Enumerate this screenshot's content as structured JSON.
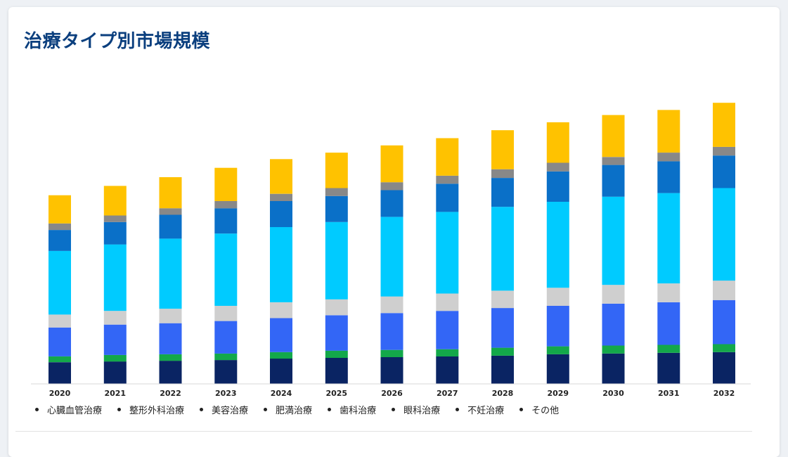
{
  "chart_data": {
    "type": "bar",
    "stacked": true,
    "title": "治療タイプ別市場規模",
    "categories": [
      "2020",
      "2021",
      "2022",
      "2023",
      "2024",
      "2025",
      "2026",
      "2027",
      "2028",
      "2029",
      "2030",
      "2031",
      "2032"
    ],
    "legend_position": "bottom",
    "grid": false,
    "ylim": [
      0,
      395
    ],
    "series": [
      {
        "name": "心臓血管治療",
        "color": "#0a2463",
        "values": [
          30,
          31,
          32,
          33,
          35,
          36,
          37,
          38,
          39,
          41,
          42,
          43,
          44
        ]
      },
      {
        "name": "整形外科治療",
        "color": "#13a84a",
        "values": [
          8,
          9,
          9,
          9,
          9,
          10,
          10,
          10,
          11,
          11,
          11,
          11,
          11
        ]
      },
      {
        "name": "美容治療",
        "color": "#3366f6",
        "values": [
          40,
          42,
          43,
          45,
          47,
          49,
          51,
          53,
          55,
          56,
          58,
          59,
          61
        ]
      },
      {
        "name": "肥満治療",
        "color": "#cfcfcf",
        "values": [
          18,
          19,
          20,
          21,
          22,
          22,
          23,
          24,
          24,
          25,
          26,
          26,
          27
        ]
      },
      {
        "name": "歯科治療",
        "color": "#00cbff",
        "values": [
          88,
          92,
          97,
          100,
          104,
          107,
          110,
          113,
          116,
          119,
          122,
          125,
          128
        ]
      },
      {
        "name": "眼科治療",
        "color": "#0a70c8",
        "values": [
          29,
          31,
          33,
          35,
          36,
          36,
          37,
          39,
          40,
          42,
          44,
          44,
          45
        ]
      },
      {
        "name": "不妊治療",
        "color": "#888888",
        "values": [
          9,
          9,
          9,
          10,
          10,
          11,
          11,
          11,
          12,
          12,
          11,
          12,
          12
        ]
      },
      {
        "name": "その他",
        "color": "#ffc200",
        "values": [
          39,
          41,
          43,
          46,
          48,
          49,
          51,
          52,
          54,
          56,
          58,
          59,
          61
        ]
      }
    ]
  }
}
